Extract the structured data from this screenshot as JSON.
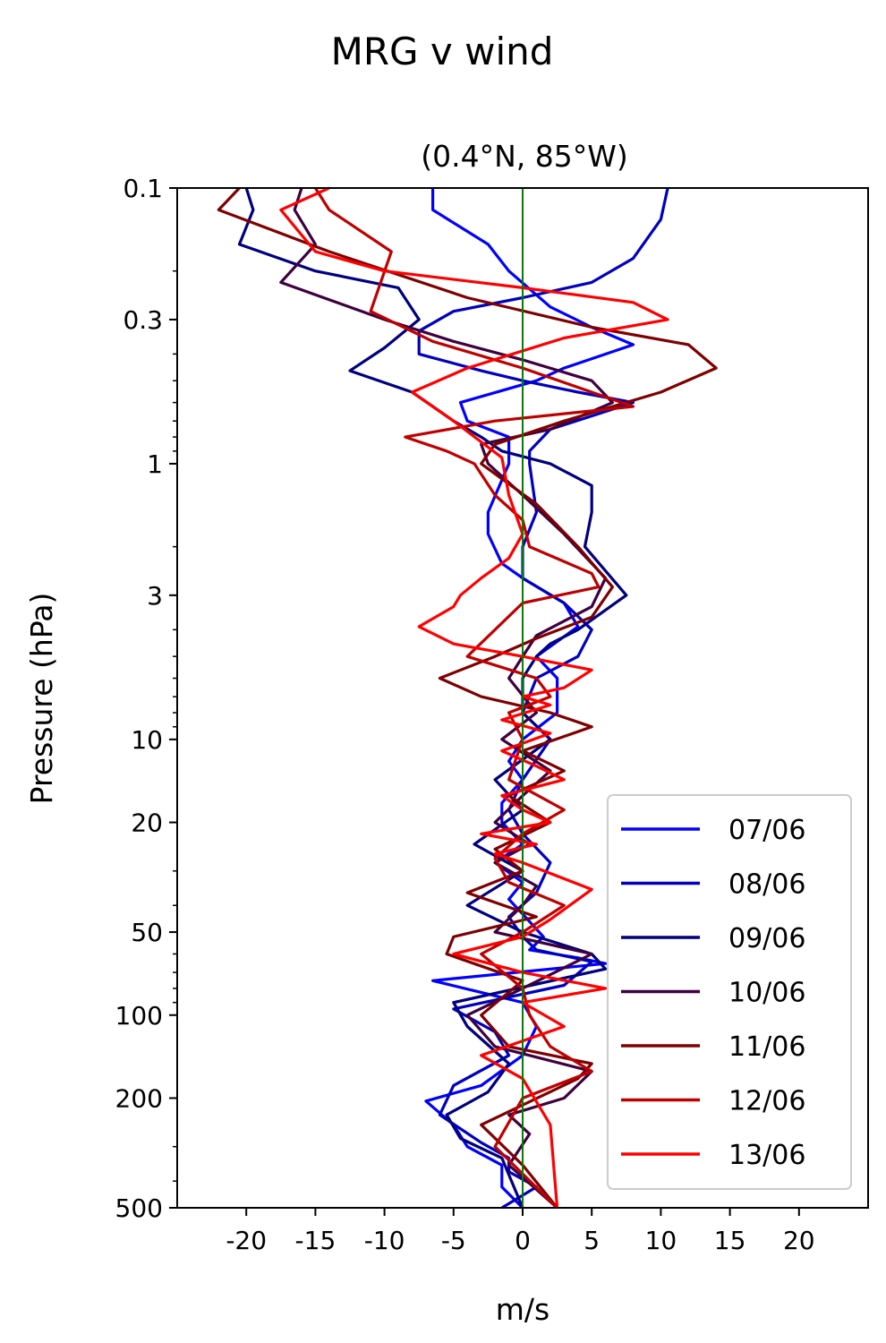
{
  "chart_data": {
    "type": "line",
    "title": "MRG v wind",
    "subtitle": "(0.4°N, 85°W)",
    "xlabel": "m/s",
    "ylabel": "Pressure (hPa)",
    "xlim": [
      -25,
      25
    ],
    "ylim": [
      500,
      0.1
    ],
    "yscale": "log",
    "xticks": [
      -20,
      -15,
      -10,
      -5,
      0,
      5,
      10,
      15,
      20
    ],
    "xtick_labels": [
      "-20",
      "-15",
      "-10",
      "-5",
      "0",
      "5",
      "10",
      "15",
      "20"
    ],
    "yticks": [
      0.1,
      0.3,
      1,
      3,
      10,
      20,
      50,
      100,
      200,
      500
    ],
    "ytick_labels": [
      "0.1",
      "0.3",
      "1",
      "3",
      "10",
      "20",
      "50",
      "100",
      "200",
      "500"
    ],
    "zero_line": {
      "x": 0,
      "color": "#007f00"
    },
    "grid": false,
    "legend_position": "lower-right",
    "series": [
      {
        "name": "07/06",
        "color": "#0000ff",
        "x": [
          -6.5,
          -6.5,
          -2.5,
          -1,
          2,
          5,
          8,
          3,
          1,
          -4.5,
          -4,
          -1,
          -1,
          -2.5,
          -2.5,
          -1.5,
          0,
          3,
          4,
          1,
          2.5,
          2.5,
          0,
          -1,
          0,
          -1.5,
          -1.5,
          0,
          -2,
          0,
          -1,
          0,
          1.5,
          0.5,
          4,
          6,
          -6.5,
          0,
          1,
          0,
          -3,
          -7,
          -5,
          -4,
          -1.5,
          -1.5,
          0
        ],
        "p": [
          0.1,
          0.12,
          0.16,
          0.2,
          0.27,
          0.32,
          0.37,
          0.45,
          0.5,
          0.6,
          0.7,
          0.8,
          1,
          1.5,
          1.8,
          2.3,
          2.6,
          3.2,
          3.9,
          5,
          6,
          8,
          10,
          12,
          14,
          17,
          20,
          24,
          28,
          33,
          38,
          43,
          52,
          58,
          62,
          65,
          75,
          90,
          110,
          140,
          180,
          205,
          250,
          300,
          350,
          420,
          500
        ]
      },
      {
        "name": "08/06",
        "color": "#0000bf",
        "x": [
          10.5,
          10,
          8,
          5,
          0,
          -5,
          -7.5,
          -7.5,
          -3,
          0,
          4,
          8,
          2,
          0.5,
          0.5,
          1,
          0,
          0,
          3,
          5,
          4,
          1,
          0,
          2,
          0,
          -1,
          0,
          2,
          1,
          -1,
          0,
          1,
          5,
          3,
          -5,
          -2,
          -1,
          -5,
          -6,
          -3,
          -1,
          -1,
          1,
          -1.5
        ],
        "p": [
          0.1,
          0.13,
          0.18,
          0.22,
          0.25,
          0.28,
          0.33,
          0.4,
          0.46,
          0.5,
          0.55,
          0.6,
          0.75,
          0.9,
          1,
          1.5,
          2,
          2.6,
          3.2,
          4,
          5,
          6,
          8,
          10,
          14,
          18,
          22,
          28,
          36,
          44,
          52,
          58,
          64,
          78,
          95,
          115,
          140,
          180,
          230,
          290,
          330,
          370,
          420,
          500
        ]
      },
      {
        "name": "09/06",
        "color": "#00007f",
        "x": [
          -20,
          -19.5,
          -20.5,
          -15,
          -9,
          -7.5,
          -10,
          -12.5,
          -8,
          -6.5,
          -5,
          -3,
          -1.5,
          2,
          5,
          5,
          4.5,
          7.5,
          4,
          2,
          1,
          0,
          0,
          2,
          -2,
          0,
          -3.5,
          0,
          -4,
          0,
          5,
          6,
          -5,
          -4,
          -1,
          -2.5,
          -5.5,
          -4.5,
          -1.5,
          0
        ],
        "p": [
          0.1,
          0.12,
          0.16,
          0.2,
          0.23,
          0.3,
          0.38,
          0.46,
          0.55,
          0.62,
          0.7,
          0.8,
          0.9,
          1,
          1.2,
          1.5,
          2,
          3,
          4,
          4.5,
          5,
          6,
          8,
          10,
          14,
          18,
          24,
          30,
          40,
          50,
          60,
          68,
          90,
          110,
          150,
          190,
          230,
          280,
          330,
          500
        ]
      },
      {
        "name": "10/06",
        "color": "#3f003f",
        "x": [
          -16,
          -16.5,
          -15,
          -17.5,
          -10,
          -5,
          0,
          5,
          6.5,
          2,
          -3,
          -2.5,
          0,
          3,
          6,
          5,
          1,
          0,
          -1,
          1,
          -1.5,
          2,
          0,
          -2,
          0.5,
          -2,
          1,
          0,
          -2,
          5,
          0,
          -4,
          -2,
          5,
          3,
          -1,
          0.5,
          -1,
          2.5
        ],
        "p": [
          0.1,
          0.12,
          0.16,
          0.22,
          0.3,
          0.36,
          0.42,
          0.5,
          0.6,
          0.75,
          0.85,
          1,
          1.3,
          1.8,
          2.6,
          3.3,
          4.2,
          5,
          6,
          8,
          10,
          13,
          16,
          20,
          24,
          28,
          34,
          40,
          50,
          60,
          80,
          100,
          130,
          160,
          200,
          230,
          270,
          350,
          500
        ]
      },
      {
        "name": "11/06",
        "color": "#7f0000",
        "x": [
          -20.5,
          -22,
          -14,
          -4,
          5,
          12,
          14,
          10,
          3,
          -2,
          -3,
          1,
          4,
          6.5,
          5,
          1,
          -2,
          -6,
          -3,
          2,
          5,
          0,
          3,
          -1,
          2,
          -2,
          0,
          -4,
          1,
          -5,
          -5.5,
          0,
          -3,
          -1,
          5,
          4,
          -3,
          0,
          2.5
        ],
        "p": [
          0.1,
          0.12,
          0.17,
          0.25,
          0.32,
          0.37,
          0.45,
          0.55,
          0.7,
          0.85,
          1,
          1.4,
          2,
          2.8,
          3.6,
          4.3,
          5,
          6,
          7,
          8,
          9,
          11,
          13,
          16,
          20,
          25,
          30,
          36,
          44,
          52,
          60,
          75,
          100,
          130,
          150,
          170,
          250,
          350,
          500
        ]
      },
      {
        "name": "12/06",
        "color": "#bf0000",
        "x": [
          -15,
          -14,
          -9.5,
          -11,
          -6.5,
          0,
          5,
          8,
          -2,
          -8.5,
          -5.5,
          -3.5,
          -2,
          0,
          0.5,
          5,
          5.5,
          0,
          -4,
          1,
          2,
          -1,
          0,
          -1,
          3,
          0,
          -2,
          -1,
          3,
          0,
          -3,
          0,
          0.5,
          2,
          5,
          0,
          -2,
          2.5
        ],
        "p": [
          0.1,
          0.12,
          0.17,
          0.28,
          0.36,
          0.45,
          0.55,
          0.62,
          0.7,
          0.8,
          0.9,
          1,
          1.3,
          1.6,
          2,
          2.5,
          2.8,
          3.2,
          5,
          6,
          7,
          8,
          10,
          14,
          18,
          22,
          27,
          33,
          40,
          50,
          60,
          80,
          100,
          130,
          160,
          200,
          300,
          500
        ]
      },
      {
        "name": "13/06",
        "color": "#ff0000",
        "x": [
          -14,
          -17.5,
          -15,
          -10,
          0,
          8,
          10.5,
          3,
          -4,
          -8,
          -5,
          -1.5,
          -1,
          0,
          -1,
          -3,
          -4.5,
          -5,
          -7.5,
          -5,
          0,
          5,
          3,
          0,
          2,
          -1.5,
          2,
          -1.5,
          1,
          3,
          -1.5,
          0,
          2,
          -3,
          1,
          -2,
          0,
          5,
          2,
          0,
          -5,
          0,
          6,
          0,
          3,
          -3,
          0,
          2,
          2.5
        ],
        "p": [
          0.1,
          0.12,
          0.17,
          0.2,
          0.23,
          0.26,
          0.3,
          0.35,
          0.45,
          0.55,
          0.7,
          0.95,
          1.3,
          1.8,
          2.2,
          2.6,
          3,
          3.3,
          3.9,
          4.5,
          5,
          5.6,
          6.5,
          7,
          7.5,
          8.5,
          9.5,
          11,
          12.5,
          14,
          16,
          18,
          20,
          22,
          24,
          26,
          28,
          35,
          45,
          52,
          60,
          70,
          80,
          90,
          110,
          140,
          170,
          250,
          500
        ]
      }
    ]
  }
}
